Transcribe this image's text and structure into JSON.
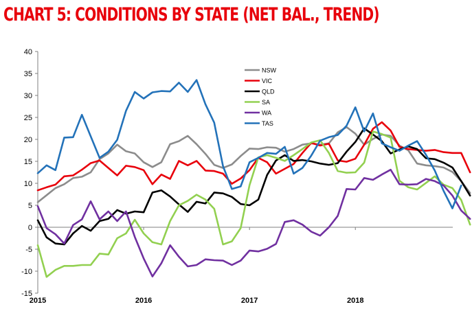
{
  "chart_data": {
    "type": "line",
    "title": "CHART 5: CONDITIONS BY STATE (NET BAL., TREND)",
    "xlabel": "",
    "ylabel": "",
    "ylim": [
      -15,
      40
    ],
    "yticks": [
      40,
      35,
      30,
      25,
      20,
      15,
      10,
      5,
      0,
      -5,
      -10,
      -15
    ],
    "xlim": [
      2015,
      2018.92
    ],
    "xticks": [
      {
        "value": 2015,
        "label": "2015"
      },
      {
        "value": 2016,
        "label": "2016"
      },
      {
        "value": 2017,
        "label": "2017"
      },
      {
        "value": 2018,
        "label": "2018"
      }
    ],
    "x_start": 2015,
    "x_step_months": 1,
    "legend_position": "upper-center",
    "series": [
      {
        "name": "NSW",
        "color": "#8c8c8c",
        "values": [
          5.7,
          7.3,
          8.9,
          9.8,
          11.2,
          11.5,
          12.5,
          15.5,
          16.8,
          18.8,
          17.3,
          16.8,
          14.8,
          13.7,
          14.8,
          18.9,
          19.6,
          20.8,
          18.9,
          16.7,
          14.2,
          13.5,
          14.3,
          16.2,
          17.9,
          17.8,
          18.2,
          18.1,
          17.2,
          17.8,
          18.8,
          19.1,
          18.8,
          19.1,
          21.6,
          22.8,
          21.3,
          18.8,
          20.1,
          21.1,
          20.8,
          18.6,
          17.5,
          14.5,
          14.1,
          13.9,
          13.6,
          12.6,
          10.5,
          7.8
        ]
      },
      {
        "name": "VIC",
        "color": "#e8000b",
        "values": [
          8.4,
          9.1,
          9.7,
          11.6,
          11.8,
          13.1,
          14.6,
          15.2,
          13.5,
          11.8,
          14.0,
          13.7,
          13.0,
          9.8,
          12.0,
          11.0,
          15.1,
          14.1,
          15.1,
          12.9,
          12.8,
          12.2,
          9.9,
          11.1,
          13.0,
          15.8,
          14.8,
          12.2,
          13.3,
          14.4,
          16.9,
          19.2,
          18.6,
          19.0,
          15.2,
          14.9,
          15.6,
          18.8,
          22.4,
          23.9,
          22.0,
          18.3,
          17.8,
          17.6,
          17.4,
          17.6,
          17.1,
          16.9,
          16.9,
          12.5
        ]
      },
      {
        "name": "QLD",
        "color": "#000000",
        "values": [
          1.6,
          -2.3,
          -3.7,
          -3.9,
          -1.4,
          0.3,
          -0.8,
          1.4,
          1.9,
          3.9,
          3.1,
          3.6,
          3.4,
          7.9,
          8.4,
          7.0,
          5.2,
          3.5,
          5.8,
          5.4,
          7.9,
          7.7,
          6.9,
          5.3,
          5.0,
          6.3,
          11.9,
          15.2,
          16.4,
          15.1,
          15.3,
          15.0,
          14.5,
          14.2,
          14.6,
          17.2,
          19.4,
          22.5,
          21.1,
          19.6,
          16.8,
          17.7,
          18.4,
          17.8,
          15.7,
          15.5,
          14.7,
          13.6,
          10.5,
          7.2
        ]
      },
      {
        "name": "SA",
        "color": "#92d050",
        "values": [
          -4.1,
          -11.3,
          -9.7,
          -8.8,
          -8.8,
          -8.6,
          -8.6,
          -6.0,
          -6.2,
          -2.5,
          -1.4,
          1.7,
          -1.4,
          -3.4,
          -3.9,
          1.4,
          5.0,
          6.0,
          7.4,
          6.3,
          4.2,
          -3.9,
          -3.2,
          -0.2,
          9.6,
          15.9,
          16.4,
          15.8,
          15.1,
          16.4,
          17.8,
          19.3,
          19.8,
          16.9,
          12.8,
          12.4,
          12.5,
          14.7,
          21.8,
          21.2,
          20.4,
          10.6,
          9.1,
          8.6,
          10.1,
          11.6,
          9.7,
          8.9,
          6.2,
          0.6
        ]
      },
      {
        "name": "WA",
        "color": "#7030a0",
        "values": [
          4.8,
          -0.2,
          -1.6,
          -3.7,
          0.5,
          1.8,
          5.9,
          1.8,
          3.6,
          1.4,
          3.6,
          -2.2,
          -7.1,
          -11.2,
          -8.2,
          -4.1,
          -6.7,
          -8.9,
          -8.6,
          -7.3,
          -7.5,
          -7.6,
          -8.6,
          -7.6,
          -5.3,
          -5.5,
          -4.9,
          -3.8,
          1.2,
          1.6,
          0.6,
          -1.0,
          -1.9,
          0.0,
          2.6,
          8.7,
          8.6,
          11.2,
          10.8,
          12.0,
          13.1,
          9.8,
          9.7,
          9.8,
          11.0,
          10.5,
          9.5,
          7.2,
          3.8,
          1.9
        ]
      },
      {
        "name": "TAS",
        "color": "#2372b9",
        "values": [
          12.3,
          14.1,
          13.0,
          20.4,
          20.5,
          25.6,
          20.7,
          15.8,
          17.2,
          19.9,
          26.5,
          30.8,
          29.3,
          30.7,
          31.0,
          30.9,
          32.9,
          30.8,
          33.5,
          28.0,
          23.8,
          13.9,
          8.7,
          9.3,
          14.8,
          15.8,
          16.9,
          16.7,
          18.3,
          12.2,
          13.5,
          16.3,
          19.7,
          20.5,
          21.0,
          23.1,
          27.3,
          21.8,
          25.9,
          19.1,
          18.2,
          17.4,
          18.6,
          19.6,
          16.5,
          12.9,
          8.3,
          4.3,
          9.5,
          null
        ]
      }
    ]
  }
}
